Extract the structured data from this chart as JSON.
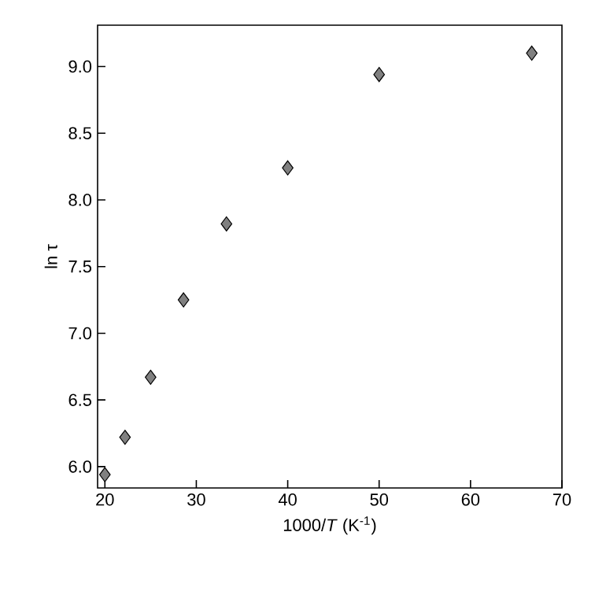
{
  "chart_data": {
    "type": "scatter",
    "xlabel": "1000/*T* (K$^{-1}$)",
    "ylabel": "ln τ",
    "x": [
      20,
      22.2,
      25,
      28.6,
      33.3,
      40,
      50,
      66.7
    ],
    "series": [
      {
        "color": "#808080",
        "values": [
          5.94,
          6.22,
          6.67,
          7.25,
          7.82,
          8.24,
          8.94,
          9.1
        ]
      }
    ],
    "marker": "diamond",
    "xlim": [
      19.2,
      70
    ],
    "ylim": [
      5.84,
      9.31
    ],
    "xticks": [
      20,
      30,
      40,
      50,
      60,
      70
    ],
    "yticks": [
      {
        "value": 6,
        "label": "6.0"
      },
      {
        "value": 6.5,
        "label": "6.5"
      },
      {
        "value": 7,
        "label": "7.0"
      },
      {
        "value": 7.5,
        "label": "7.5"
      },
      {
        "value": 8,
        "label": "8.0"
      },
      {
        "value": 8.5,
        "label": "8.5"
      },
      {
        "value": 9,
        "label": "9.0"
      }
    ],
    "grid": false
  }
}
